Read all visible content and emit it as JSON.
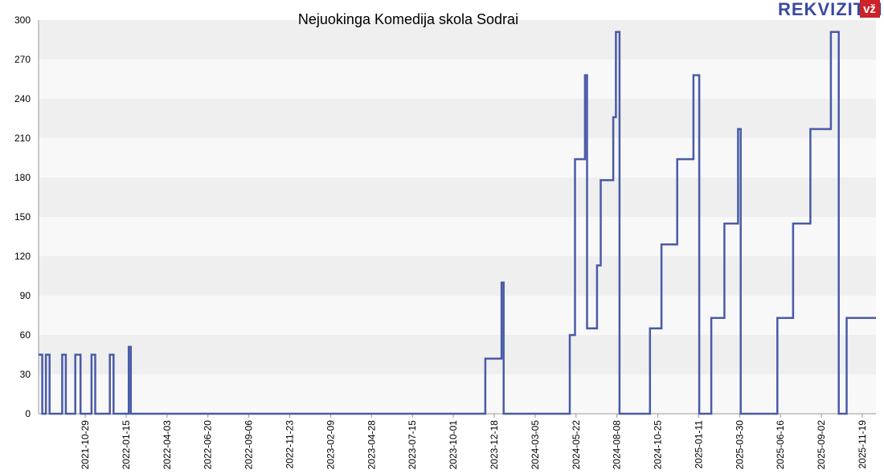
{
  "brand": {
    "name": "REKVIZITAI",
    "badge": "vž",
    "badge_color": "#cc2229",
    "text_color": "#3a4aa0"
  },
  "chart_data": {
    "type": "line",
    "title": "Nejuokinga Komedija skola Sodrai",
    "xlabel": "",
    "ylabel": "",
    "ylim": [
      0,
      300
    ],
    "yticks": [
      0,
      30,
      60,
      90,
      120,
      150,
      180,
      210,
      240,
      270,
      300
    ],
    "xlim": [
      "2021-08-01",
      "2025-12-15"
    ],
    "xticks": [
      "2021-10-29",
      "2022-01-15",
      "2022-04-03",
      "2022-06-20",
      "2022-09-06",
      "2022-11-23",
      "2023-02-09",
      "2023-04-28",
      "2023-07-15",
      "2023-10-01",
      "2023-12-18",
      "2024-03-05",
      "2024-05-22",
      "2024-08-08",
      "2024-10-25",
      "2025-01-11",
      "2025-03-30",
      "2025-06-16",
      "2025-09-02",
      "2025-11-19"
    ],
    "line_color": "#4a5aa8",
    "grid": "horizontal alternating bands",
    "points": [
      [
        "2021-08-01",
        45
      ],
      [
        "2021-08-08",
        0
      ],
      [
        "2021-08-15",
        45
      ],
      [
        "2021-08-22",
        0
      ],
      [
        "2021-09-15",
        45
      ],
      [
        "2021-09-22",
        0
      ],
      [
        "2021-10-10",
        45
      ],
      [
        "2021-10-20",
        0
      ],
      [
        "2021-11-10",
        45
      ],
      [
        "2021-11-17",
        0
      ],
      [
        "2021-12-15",
        45
      ],
      [
        "2021-12-22",
        0
      ],
      [
        "2022-01-20",
        51
      ],
      [
        "2022-01-24",
        0
      ],
      [
        "2023-12-01",
        42
      ],
      [
        "2024-01-01",
        100
      ],
      [
        "2024-01-05",
        0
      ],
      [
        "2024-05-10",
        60
      ],
      [
        "2024-05-20",
        194
      ],
      [
        "2024-06-08",
        258
      ],
      [
        "2024-06-12",
        65
      ],
      [
        "2024-07-01",
        113
      ],
      [
        "2024-07-08",
        178
      ],
      [
        "2024-08-01",
        226
      ],
      [
        "2024-08-06",
        291
      ],
      [
        "2024-08-13",
        0
      ],
      [
        "2024-10-10",
        65
      ],
      [
        "2024-11-01",
        129
      ],
      [
        "2024-12-01",
        194
      ],
      [
        "2025-01-01",
        258
      ],
      [
        "2025-01-12",
        0
      ],
      [
        "2025-02-04",
        73
      ],
      [
        "2025-03-01",
        145
      ],
      [
        "2025-03-27",
        217
      ],
      [
        "2025-04-01",
        0
      ],
      [
        "2025-06-10",
        73
      ],
      [
        "2025-07-10",
        145
      ],
      [
        "2025-08-12",
        217
      ],
      [
        "2025-09-20",
        291
      ],
      [
        "2025-10-05",
        0
      ],
      [
        "2025-10-20",
        73
      ],
      [
        "2025-12-15",
        73
      ]
    ]
  }
}
